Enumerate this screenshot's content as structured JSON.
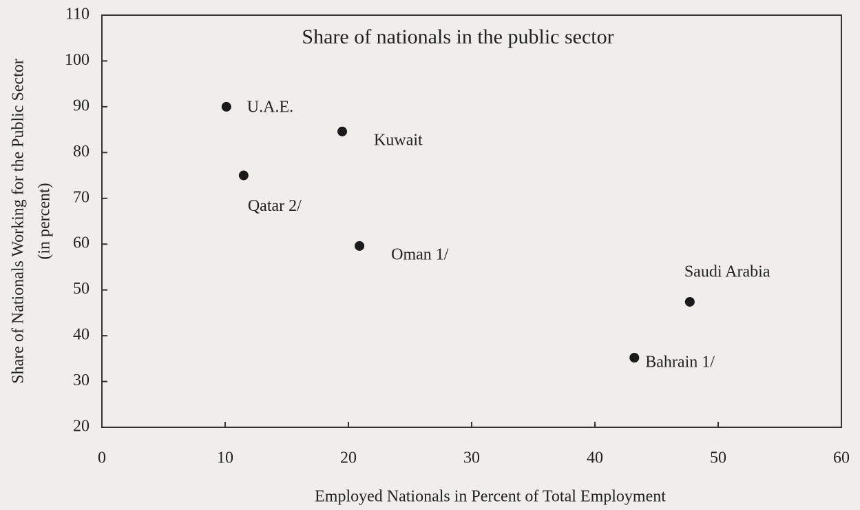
{
  "chart_data": {
    "type": "scatter",
    "title": "Share of nationals in the public sector",
    "x_label": "Employed Nationals in Percent of Total Employment",
    "y_label": [
      "Share of Nationals Working for the Public Sector",
      "(in percent)"
    ],
    "categories": [
      "U.A.E.",
      "Kuwait",
      "Qatar 2/",
      "Oman 1/",
      "Saudi Arabia",
      "Bahrain 1/"
    ],
    "x": [
      10.1,
      19.5,
      11.5,
      20.9,
      47.7,
      43.2
    ],
    "values": [
      90,
      84.6,
      75,
      59.6,
      47.4,
      35.2
    ],
    "color": "#1a1a1a",
    "xlim": [
      0,
      60
    ],
    "xticks": [
      0,
      10,
      20,
      30,
      40,
      50,
      60
    ],
    "ylim": [
      20,
      110
    ],
    "yticks": [
      20,
      30,
      40,
      50,
      60,
      70,
      80,
      90,
      100,
      110
    ],
    "grid": false
  }
}
